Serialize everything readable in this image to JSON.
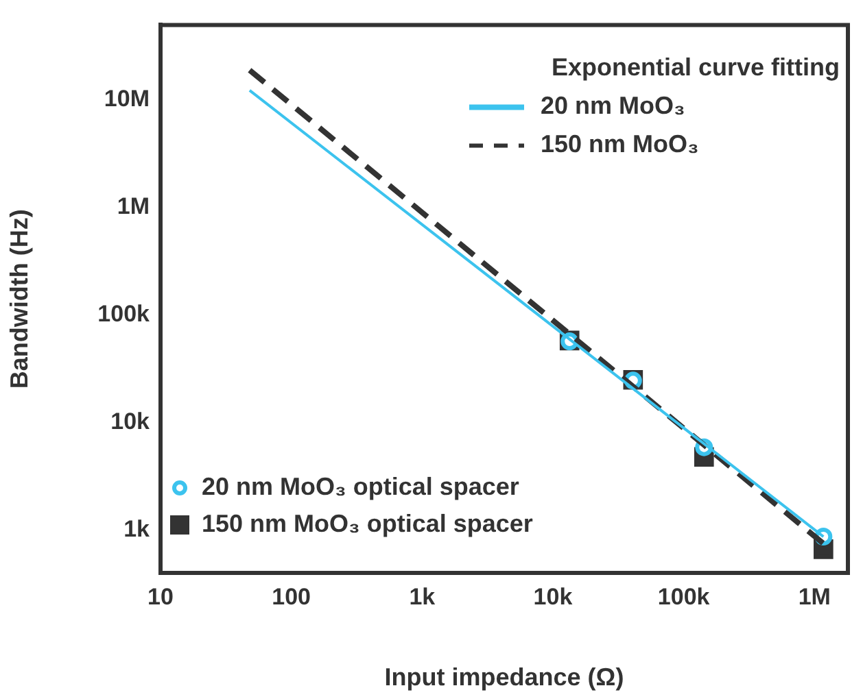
{
  "chart_data": {
    "type": "scatter",
    "xlabel": "Input impedance (Ω)",
    "ylabel": "Bandwidth (Hz)",
    "log": "xy",
    "xlim": [
      10,
      1800000
    ],
    "ylim": [
      400,
      50000000
    ],
    "xticks": [
      10,
      100,
      {
        "value": 1000,
        "label": "1k"
      },
      {
        "value": 10000,
        "label": "10k"
      },
      {
        "value": 100000,
        "label": "100k"
      },
      {
        "value": 1000000,
        "label": "1M"
      }
    ],
    "yticks": [
      {
        "value": 1000,
        "label": "1k"
      },
      {
        "value": 10000,
        "label": "10k"
      },
      {
        "value": 100000,
        "label": "100k"
      },
      {
        "value": 1000000,
        "label": "1M"
      },
      {
        "value": 10000000,
        "label": "10M"
      }
    ],
    "grid": false,
    "legend": "left",
    "legend_title": "Exponential curve fitting",
    "series": [
      {
        "name": "20 nm MoO₃",
        "type": "line",
        "color": "#3cc3ee",
        "line_style": "solid",
        "marker": "none",
        "x": [
          48,
          1170000
        ],
        "values": [
          12300000,
          870
        ]
      },
      {
        "name": "150 nm MoO₃",
        "type": "line",
        "color": "#333333",
        "line_style": "dashed",
        "marker": "none",
        "x": [
          48,
          1170000
        ],
        "values": [
          19000000,
          750
        ]
      },
      {
        "name": "20 nm MoO₃ optical spacer",
        "type": "scatter",
        "color": "#3cc3ee",
        "marker": "circle",
        "x": [
          13400,
          41000,
          143000,
          1170000
        ],
        "values": [
          57000,
          24600,
          5900,
          870
        ]
      },
      {
        "name": "150 nm MoO₃ optical spacer",
        "type": "scatter",
        "color": "#333333",
        "marker": "square",
        "x": [
          13400,
          41000,
          143000,
          1170000
        ],
        "values": [
          58000,
          25000,
          4800,
          665
        ]
      }
    ]
  }
}
